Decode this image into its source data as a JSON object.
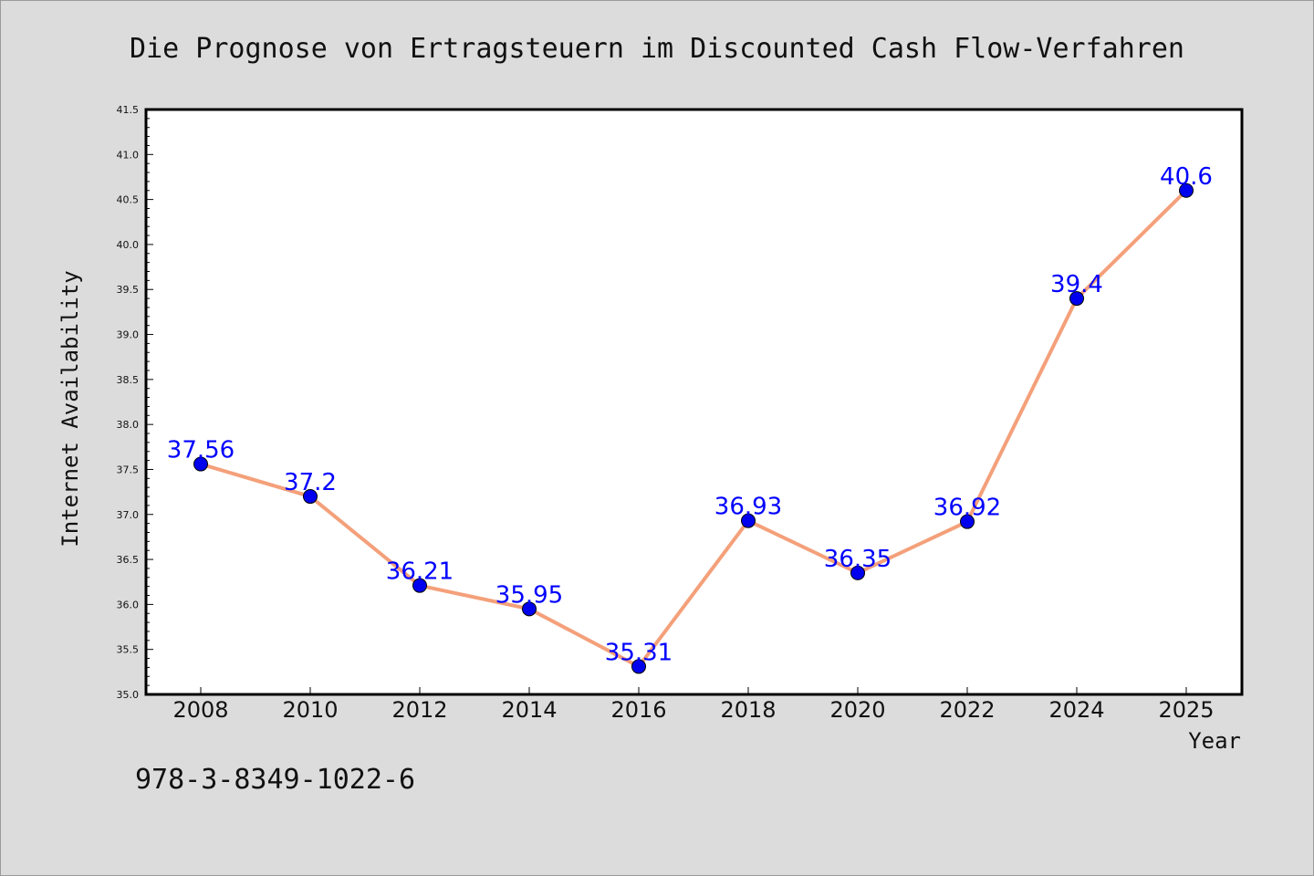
{
  "chart_data": {
    "type": "line",
    "title": "Die Prognose von Ertragsteuern im Discounted Cash Flow-Verfahren",
    "xlabel": "Year",
    "ylabel": "Internet Availability",
    "categories": [
      "2008",
      "2010",
      "2012",
      "2014",
      "2016",
      "2018",
      "2020",
      "2022",
      "2024",
      "2025"
    ],
    "series": [
      {
        "values": [
          37.56,
          37.2,
          36.21,
          35.95,
          35.31,
          36.93,
          36.35,
          36.92,
          39.4,
          40.6
        ],
        "labels": [
          "37.56",
          "37.2",
          "36.21",
          "35.95",
          "35.31",
          "36.93",
          "36.35",
          "36.92",
          "39.4",
          "40.6"
        ]
      }
    ],
    "ylim": [
      35.0,
      41.5
    ],
    "yticks": [
      "35.0",
      "35.5",
      "36.0",
      "36.5",
      "37.0",
      "37.5",
      "38.0",
      "38.5",
      "39.0",
      "39.5",
      "40.0",
      "40.5",
      "41.0",
      "41.5"
    ],
    "grid": false,
    "colors": {
      "line": "#f4a07a",
      "marker": "#0000ee",
      "label": "#0000ff",
      "plot_background": "#ffffff",
      "page_background": "#dcdcdc"
    }
  },
  "footer": {
    "isbn": "978-3-8349-1022-6"
  }
}
